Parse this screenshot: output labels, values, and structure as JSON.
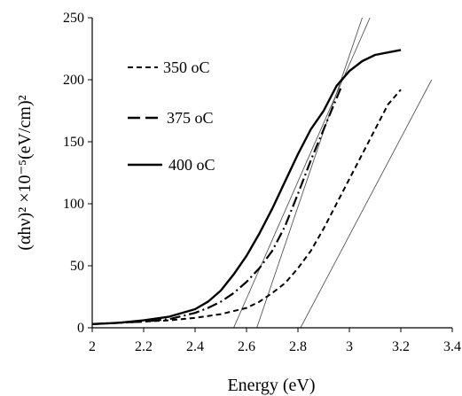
{
  "chart_data": {
    "type": "line",
    "xlabel": "Energy  (eV)",
    "ylabel": "(αhν)² ×10⁻⁵(eV/cm)²",
    "xlim": [
      2,
      3.4
    ],
    "ylim": [
      0,
      250
    ],
    "x_ticks": [
      "2",
      "2.2",
      "2.4",
      "2.6",
      "2.8",
      "3",
      "3.2",
      "3.4"
    ],
    "y_ticks": [
      "0",
      "50",
      "100",
      "150",
      "200",
      "250"
    ],
    "grid": false,
    "legend_position": "upper-left",
    "series": [
      {
        "name": "350 oC",
        "style": "dashed",
        "x": [
          2.0,
          2.1,
          2.2,
          2.3,
          2.4,
          2.5,
          2.6,
          2.65,
          2.7,
          2.75,
          2.8,
          2.85,
          2.9,
          2.95,
          3.0,
          3.05,
          3.1,
          3.15,
          3.2
        ],
        "y": [
          3,
          4,
          5,
          6,
          8,
          11,
          16,
          21,
          28,
          36,
          48,
          62,
          80,
          100,
          120,
          140,
          160,
          180,
          192
        ]
      },
      {
        "name": "375 oC",
        "style": "dash-dot",
        "x": [
          2.0,
          2.1,
          2.2,
          2.3,
          2.4,
          2.45,
          2.5,
          2.55,
          2.6,
          2.65,
          2.7,
          2.75,
          2.8,
          2.85,
          2.9,
          2.95,
          2.97
        ],
        "y": [
          3,
          4,
          5,
          7,
          12,
          16,
          21,
          28,
          37,
          48,
          62,
          82,
          108,
          135,
          160,
          185,
          195
        ]
      },
      {
        "name": "400 oC",
        "style": "solid",
        "x": [
          2.0,
          2.1,
          2.2,
          2.3,
          2.4,
          2.45,
          2.5,
          2.55,
          2.6,
          2.65,
          2.7,
          2.75,
          2.8,
          2.85,
          2.9,
          2.95,
          3.0,
          3.05,
          3.1,
          3.15,
          3.2
        ],
        "y": [
          3,
          4,
          6,
          9,
          15,
          21,
          30,
          43,
          58,
          76,
          96,
          118,
          140,
          160,
          175,
          195,
          207,
          215,
          220,
          222,
          224
        ]
      }
    ],
    "fit_lines": [
      {
        "x": [
          2.55,
          3.08
        ],
        "y": [
          0,
          250
        ]
      },
      {
        "x": [
          2.64,
          3.05
        ],
        "y": [
          0,
          250
        ]
      },
      {
        "x": [
          2.81,
          3.32
        ],
        "y": [
          0,
          200
        ]
      }
    ]
  }
}
